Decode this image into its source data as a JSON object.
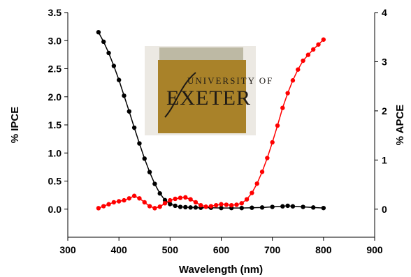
{
  "chart_data": {
    "type": "scatter",
    "title": "",
    "xlabel": "Wavelength (nm)",
    "ylabel_left": "% IPCE",
    "ylabel_right": "% APCE",
    "xlim": [
      300,
      900
    ],
    "ylim_left": [
      -0.5,
      3.5
    ],
    "ylim_right": [
      -0.571,
      4
    ],
    "x_ticks": [
      "300",
      "400",
      "500",
      "600",
      "700",
      "800",
      "900"
    ],
    "y_left_ticks": [
      "0.0",
      "0.5",
      "1.0",
      "1.5",
      "2.0",
      "2.5",
      "3.0",
      "3.5"
    ],
    "y_right_ticks": [
      "0",
      "1",
      "2",
      "3",
      "4"
    ],
    "grid": false,
    "legend": "none",
    "series": [
      {
        "axis": "left",
        "color": "#000000",
        "x": [
          360,
          370,
          380,
          390,
          400,
          410,
          420,
          430,
          440,
          450,
          460,
          470,
          480,
          490,
          500,
          510,
          520,
          530,
          540,
          550,
          560,
          580,
          600,
          620,
          640,
          660,
          680,
          700,
          720,
          730,
          740,
          760,
          780,
          800
        ],
        "y": [
          3.15,
          2.98,
          2.78,
          2.55,
          2.3,
          2.02,
          1.74,
          1.45,
          1.17,
          0.9,
          0.66,
          0.45,
          0.28,
          0.16,
          0.09,
          0.06,
          0.04,
          0.035,
          0.03,
          0.03,
          0.025,
          0.025,
          0.02,
          0.02,
          0.02,
          0.025,
          0.03,
          0.04,
          0.05,
          0.06,
          0.05,
          0.04,
          0.03,
          0.02
        ]
      },
      {
        "axis": "right",
        "color": "#ff0000",
        "x": [
          360,
          370,
          380,
          390,
          400,
          410,
          420,
          430,
          440,
          450,
          460,
          470,
          480,
          490,
          500,
          510,
          520,
          530,
          540,
          550,
          560,
          570,
          580,
          590,
          600,
          610,
          620,
          630,
          640,
          650,
          660,
          670,
          680,
          690,
          700,
          710,
          720,
          730,
          740,
          750,
          760,
          770,
          780,
          790,
          800
        ],
        "y": [
          0.02,
          0.06,
          0.1,
          0.14,
          0.16,
          0.18,
          0.22,
          0.27,
          0.22,
          0.14,
          0.06,
          0.02,
          0.05,
          0.12,
          0.18,
          0.21,
          0.23,
          0.24,
          0.2,
          0.14,
          0.08,
          0.05,
          0.06,
          0.08,
          0.1,
          0.09,
          0.08,
          0.09,
          0.12,
          0.2,
          0.33,
          0.52,
          0.76,
          1.04,
          1.36,
          1.7,
          2.06,
          2.36,
          2.62,
          2.84,
          3.02,
          3.14,
          3.25,
          3.35,
          3.45
        ]
      }
    ]
  },
  "photo": {
    "line1": "UNIVERSITY OF",
    "line2": "EXETER"
  }
}
